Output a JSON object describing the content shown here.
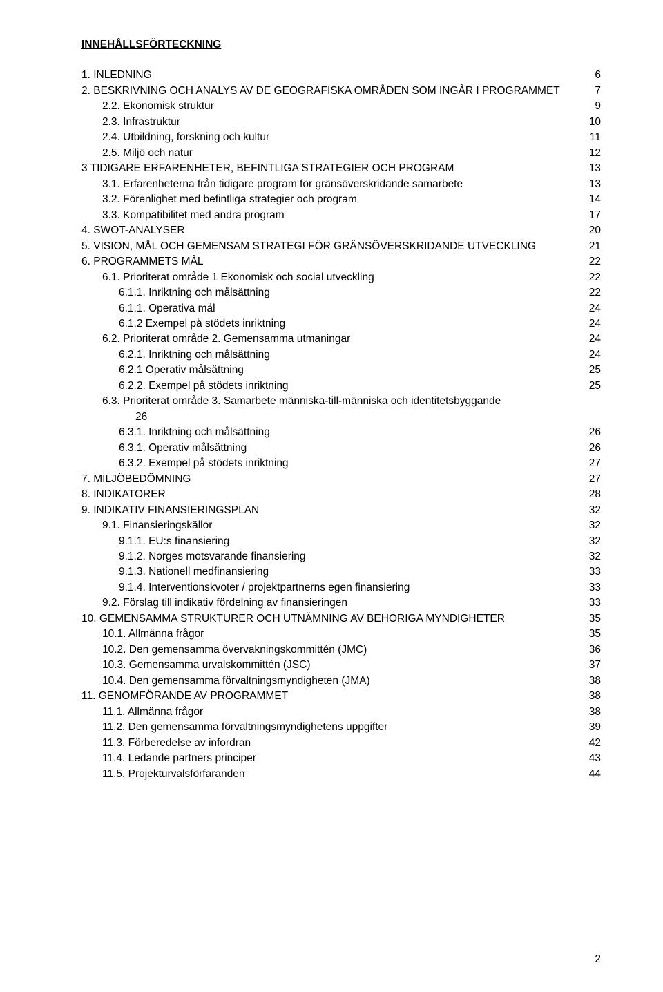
{
  "title": "INNEHÅLLSFÖRTECKNING",
  "footerPage": "2",
  "entries": [
    {
      "indent": 0,
      "label": "1. INLEDNING",
      "page": "6"
    },
    {
      "indent": 0,
      "label": "2. BESKRIVNING OCH ANALYS AV DE GEOGRAFISKA OMRÅDEN SOM INGÅR I PROGRAMMET",
      "page": "7"
    },
    {
      "indent": 1,
      "label": "2.2.   Ekonomisk struktur",
      "page": "9"
    },
    {
      "indent": 1,
      "label": "2.3.   Infrastruktur",
      "page": "10"
    },
    {
      "indent": 1,
      "label": "2.4.   Utbildning, forskning och kultur",
      "page": "11"
    },
    {
      "indent": 1,
      "label": "2.5.   Miljö och natur",
      "page": "12"
    },
    {
      "indent": 0,
      "label": "3 TIDIGARE ERFARENHETER, BEFINTLIGA STRATEGIER OCH PROGRAM",
      "page": "13"
    },
    {
      "indent": 1,
      "label": "3.1.   Erfarenheterna från tidigare program för gränsöverskridande samarbete",
      "page": "13"
    },
    {
      "indent": 1,
      "label": "3.2.   Förenlighet med befintliga strategier och program",
      "page": "14"
    },
    {
      "indent": 1,
      "label": "3.3.   Kompatibilitet med andra program",
      "page": "17"
    },
    {
      "indent": 0,
      "label": "4. SWOT-ANALYSER",
      "page": "20"
    },
    {
      "indent": 0,
      "label": "5. VISION, MÅL OCH GEMENSAM STRATEGI FÖR GRÄNSÖVERSKRIDANDE UTVECKLING",
      "page": "21"
    },
    {
      "indent": 0,
      "label": "6. PROGRAMMETS MÅL",
      "page": "22"
    },
    {
      "indent": 1,
      "label": "6.1.   Prioriterat område 1 Ekonomisk och social utveckling",
      "page": "22"
    },
    {
      "indent": 2,
      "label": "6.1.1. Inriktning och målsättning",
      "page": "22"
    },
    {
      "indent": 2,
      "label": "6.1.1. Operativa mål",
      "page": "24"
    },
    {
      "indent": 2,
      "label": "6.1.2 Exempel på stödets inriktning",
      "page": "24"
    },
    {
      "indent": 1,
      "label": "6.2.   Prioriterat område 2. Gemensamma utmaningar",
      "page": "24"
    },
    {
      "indent": 2,
      "label": "6.2.1. Inriktning och målsättning",
      "page": "24"
    },
    {
      "indent": 2,
      "label": "6.2.1 Operativ målsättning",
      "page": "25"
    },
    {
      "indent": 2,
      "label": "6.2.2. Exempel på stödets inriktning",
      "page": "25"
    },
    {
      "indent": 1,
      "label": "6.3.   Prioriterat område 3. Samarbete människa-till-människa och identitetsbyggande",
      "page": ""
    },
    {
      "indent": -1,
      "label": "26",
      "page": ""
    },
    {
      "indent": 2,
      "label": "6.3.1. Inriktning och målsättning",
      "page": "26"
    },
    {
      "indent": 2,
      "label": "6.3.1. Operativ målsättning",
      "page": "26"
    },
    {
      "indent": 2,
      "label": "6.3.2. Exempel på stödets inriktning",
      "page": "27"
    },
    {
      "indent": 0,
      "label": "7. MILJÖBEDÖMNING",
      "page": "27"
    },
    {
      "indent": 0,
      "label": "8. INDIKATORER",
      "page": "28"
    },
    {
      "indent": 0,
      "label": "9. INDIKATIV FINANSIERINGSPLAN",
      "page": "32"
    },
    {
      "indent": 1,
      "label": "9.1.   Finansieringskällor",
      "page": "32"
    },
    {
      "indent": 2,
      "label": "9.1.1. EU:s finansiering",
      "page": "32"
    },
    {
      "indent": 2,
      "label": "9.1.2. Norges motsvarande finansiering",
      "page": "32"
    },
    {
      "indent": 2,
      "label": "9.1.3. Nationell medfinansiering",
      "page": "33"
    },
    {
      "indent": 2,
      "label": "9.1.4. Interventionskvoter / projektpartnerns egen finansiering",
      "page": "33"
    },
    {
      "indent": 1,
      "label": "9.2.   Förslag till indikativ fördelning av finansieringen",
      "page": "33"
    },
    {
      "indent": 0,
      "label": "10. GEMENSAMMA STRUKTURER OCH UTNÄMNING AV BEHÖRIGA MYNDIGHETER",
      "page": "35"
    },
    {
      "indent": 1,
      "label": "10.1. Allmänna frågor",
      "page": "35"
    },
    {
      "indent": 1,
      "label": "10.2.   Den gemensamma övervakningskommittén (JMC)",
      "page": "36"
    },
    {
      "indent": 1,
      "label": "10.3.   Gemensamma urvalskommittén (JSC)",
      "page": "37"
    },
    {
      "indent": 1,
      "label": "10.4.   Den gemensamma förvaltningsmyndigheten (JMA)",
      "page": "38"
    },
    {
      "indent": 0,
      "label": "11. GENOMFÖRANDE AV PROGRAMMET",
      "page": "38"
    },
    {
      "indent": 1,
      "label": "11.1.   Allmänna frågor",
      "page": "38"
    },
    {
      "indent": 1,
      "label": "11.2.   Den gemensamma förvaltningsmyndighetens uppgifter",
      "page": "39"
    },
    {
      "indent": 1,
      "label": "11.3.   Förberedelse av infordran",
      "page": "42"
    },
    {
      "indent": 1,
      "label": "11.4.   Ledande partners principer",
      "page": "43"
    },
    {
      "indent": 1,
      "label": "11.5.   Projekturvalsförfaranden",
      "page": "44"
    }
  ]
}
